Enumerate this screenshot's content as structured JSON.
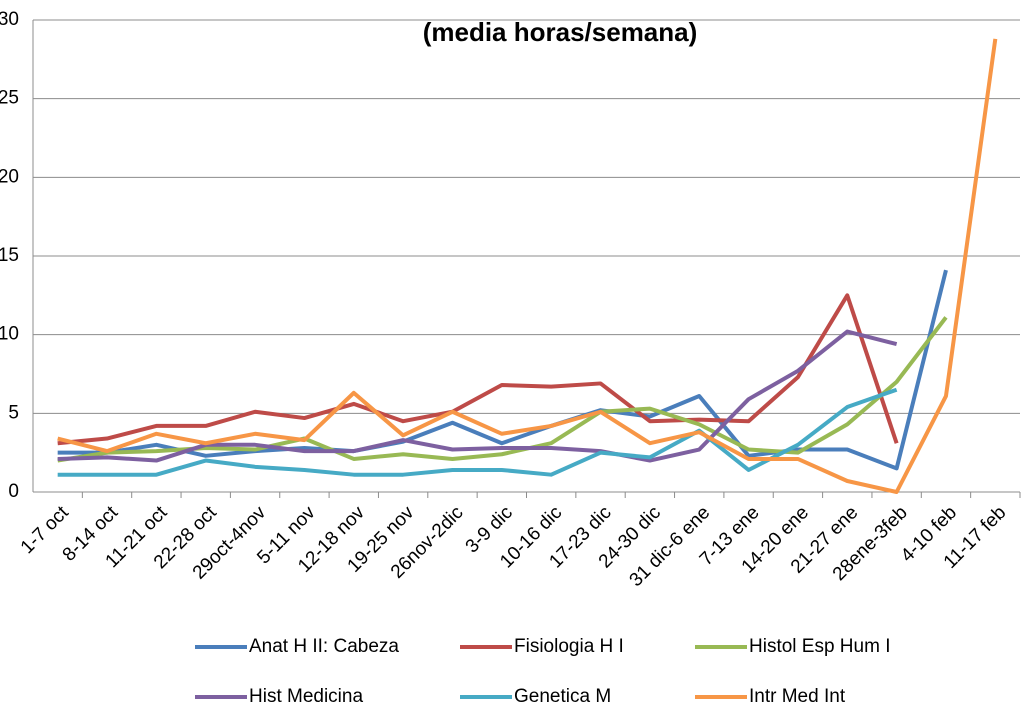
{
  "chart_data": {
    "type": "line",
    "title": "(media horas/semana)",
    "categories": [
      "1-7 oct",
      "8-14 oct",
      "11-21 oct",
      "22-28 oct",
      "29oct-4nov",
      "5-11 nov",
      "12-18 nov",
      "19-25 nov",
      "26nov-2dic",
      "3-9 dic",
      "10-16 dic",
      "17-23 dic",
      "24-30 dic",
      "31 dic-6 ene",
      "7-13 ene",
      "14-20 ene",
      "21-27 ene",
      "28ene-3feb",
      "4-10 feb",
      "11-17 feb"
    ],
    "series": [
      {
        "name": "Anat H II: Cabeza",
        "color": "#4a7ebb",
        "values": [
          2.5,
          2.5,
          3.0,
          2.3,
          2.6,
          2.8,
          2.6,
          3.2,
          4.4,
          3.1,
          4.2,
          5.2,
          4.8,
          6.1,
          2.3,
          2.7,
          2.7,
          1.5,
          14.1,
          null
        ]
      },
      {
        "name": "Fisiologia H I",
        "color": "#be4b48",
        "values": [
          3.1,
          3.4,
          4.2,
          4.2,
          5.1,
          4.7,
          5.6,
          4.5,
          5.1,
          6.8,
          6.7,
          6.9,
          4.5,
          4.6,
          4.5,
          7.3,
          12.5,
          3.1,
          null,
          null
        ]
      },
      {
        "name": "Histol Esp Hum I",
        "color": "#98b954",
        "values": [
          2.0,
          2.5,
          2.6,
          2.8,
          2.7,
          3.4,
          2.1,
          2.4,
          2.1,
          2.4,
          3.1,
          5.1,
          5.3,
          4.3,
          2.7,
          2.5,
          4.3,
          7.0,
          11.1,
          null
        ]
      },
      {
        "name": "Hist Medicina",
        "color": "#7d60a0",
        "values": [
          2.1,
          2.2,
          2.0,
          3.0,
          3.0,
          2.6,
          2.6,
          3.3,
          2.7,
          2.8,
          2.8,
          2.6,
          2.0,
          2.7,
          5.9,
          7.7,
          10.2,
          9.4,
          null,
          null
        ]
      },
      {
        "name": "Genetica M",
        "color": "#46aac5",
        "values": [
          1.1,
          1.1,
          1.1,
          2.0,
          1.6,
          1.4,
          1.1,
          1.1,
          1.4,
          1.4,
          1.1,
          2.5,
          2.2,
          3.9,
          1.4,
          3.0,
          5.4,
          6.5,
          null,
          null
        ]
      },
      {
        "name": "Intr Med Int",
        "color": "#f79646",
        "values": [
          3.4,
          2.6,
          3.7,
          3.1,
          3.7,
          3.3,
          6.3,
          3.6,
          5.1,
          3.7,
          4.2,
          5.1,
          3.1,
          3.8,
          2.1,
          2.1,
          0.7,
          0,
          6.1,
          28.8
        ]
      }
    ],
    "ylim": [
      0,
      30
    ],
    "yticks": [
      0,
      5,
      10,
      15,
      20,
      25,
      30
    ],
    "grid": true
  }
}
